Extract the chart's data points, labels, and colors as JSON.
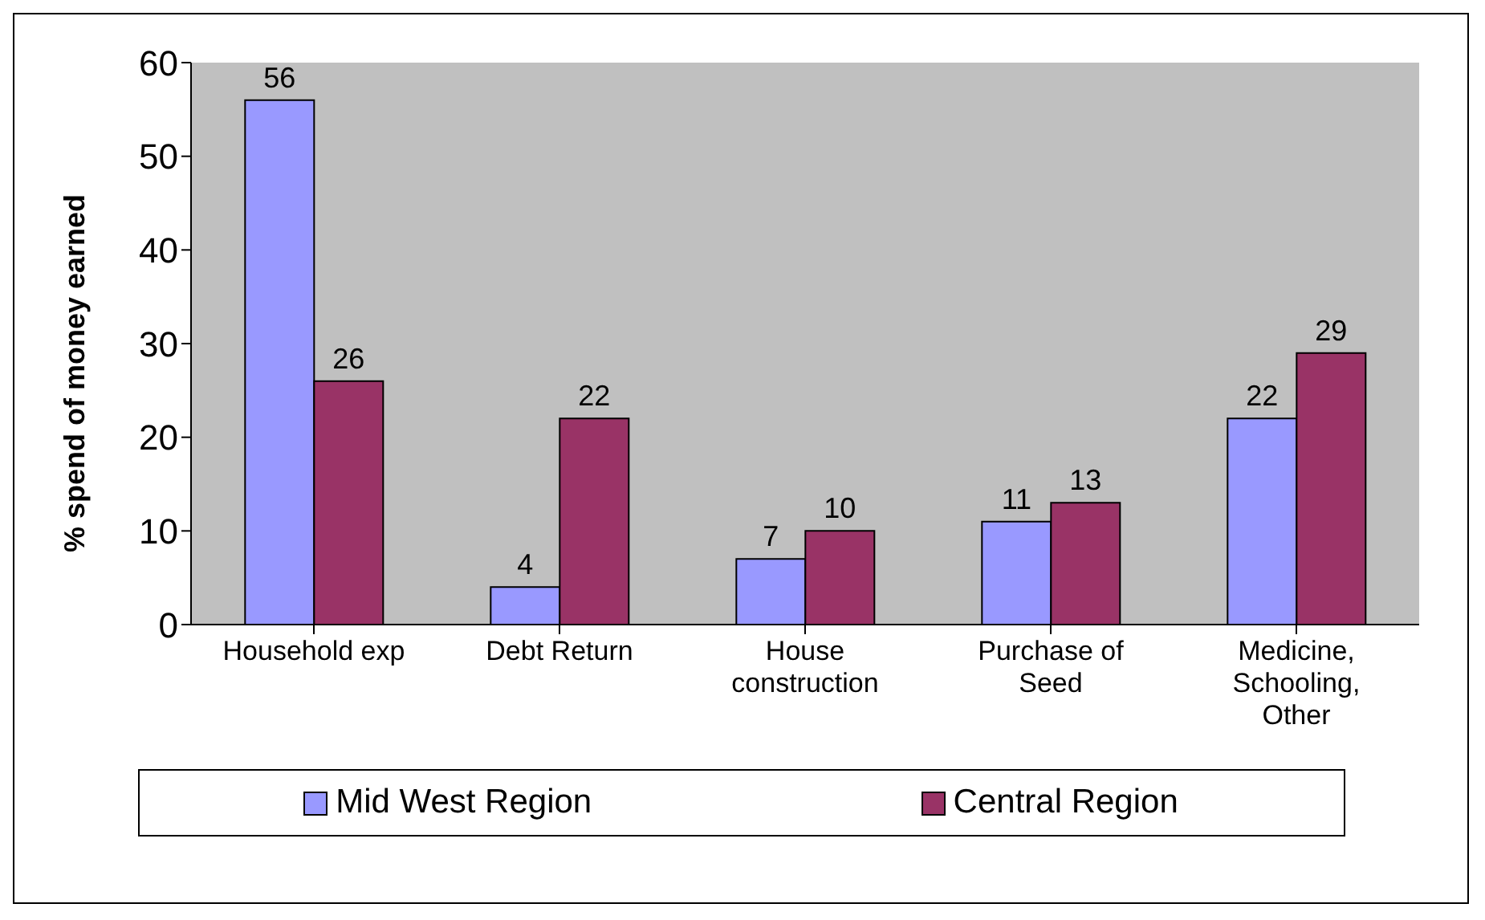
{
  "chart_data": {
    "type": "bar",
    "ylabel": "% spend of money earned",
    "categories": [
      "Household exp",
      "Debt Return",
      "House construction",
      "Purchase of Seed",
      "Medicine, Schooling, Other"
    ],
    "series": [
      {
        "name": "Mid West Region",
        "color": "#9999ff",
        "values": [
          56,
          4,
          7,
          11,
          22
        ]
      },
      {
        "name": "Central Region",
        "color": "#993366",
        "values": [
          26,
          22,
          10,
          13,
          29
        ]
      }
    ],
    "ylim": [
      0,
      60
    ],
    "yticks": [
      0,
      10,
      20,
      30,
      40,
      50,
      60
    ],
    "grid": false,
    "legend": "bottom",
    "data_labels": true
  }
}
